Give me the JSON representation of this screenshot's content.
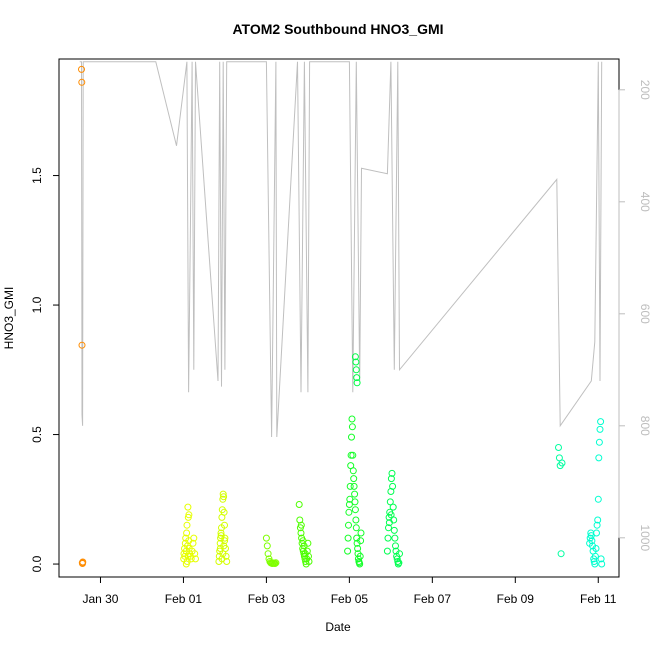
{
  "chart_data": {
    "type": "scatter",
    "title": "ATOM2 Southbound HNO3_GMI",
    "xlabel": "Date",
    "ylabel": "HNO3_GMI",
    "xlim": [
      "2016-01-29T00:00",
      "2016-02-11T12:00"
    ],
    "ylim": [
      -0.05,
      1.95
    ],
    "y2lim": [
      1070,
      145
    ],
    "y2_inverted": true,
    "x_ticks": [
      {
        "date": "2016-01-30",
        "label": "Jan 30"
      },
      {
        "date": "2016-02-01",
        "label": "Feb 01"
      },
      {
        "date": "2016-02-03",
        "label": "Feb 03"
      },
      {
        "date": "2016-02-05",
        "label": "Feb 05"
      },
      {
        "date": "2016-02-07",
        "label": "Feb 07"
      },
      {
        "date": "2016-02-09",
        "label": "Feb 09"
      },
      {
        "date": "2016-02-11",
        "label": "Feb 11"
      }
    ],
    "y_ticks": [
      {
        "value": 0.0,
        "label": "0.0"
      },
      {
        "value": 0.5,
        "label": "0.5"
      },
      {
        "value": 1.0,
        "label": "1.0"
      },
      {
        "value": 1.5,
        "label": "1.5"
      }
    ],
    "y2_ticks": [
      {
        "value": 200,
        "label": "200"
      },
      {
        "value": 400,
        "label": "400"
      },
      {
        "value": 600,
        "label": "600"
      },
      {
        "value": 800,
        "label": "800"
      },
      {
        "value": 1000,
        "label": "1000"
      }
    ],
    "grid": false,
    "legend": "none",
    "colors": {
      "points": [
        "#ff8c00",
        "#e6ff00",
        "#c8ff00",
        "#7fff00",
        "#32ff00",
        "#00ff3c",
        "#00ff6e",
        "#00ffa0",
        "#00ffd0"
      ],
      "pressure_line": "#bfbfbf"
    },
    "series": [
      {
        "color": "#ff8c00",
        "x": [
          "2016-01-29T13:00",
          "2016-01-29T13:12",
          "2016-01-29T13:20",
          "2016-01-29T13:30",
          "2016-01-29T13:36",
          "2016-01-29T13:45"
        ],
        "y": [
          1.91,
          1.86,
          0.845,
          0.005,
          0.002,
          0.008
        ]
      },
      {
        "color": "#e6ff00",
        "x": [
          "2016-02-01T00:10",
          "2016-02-01T00:20",
          "2016-02-01T00:35",
          "2016-02-01T00:50",
          "2016-02-01T01:05",
          "2016-02-01T01:20",
          "2016-02-01T01:35",
          "2016-02-01T01:50",
          "2016-02-01T02:05",
          "2016-02-01T02:20",
          "2016-02-01T02:35",
          "2016-02-01T02:50",
          "2016-02-01T03:05",
          "2016-02-01T03:20",
          "2016-02-01T03:35",
          "2016-02-01T04:00",
          "2016-02-01T04:30",
          "2016-02-01T05:00",
          "2016-02-01T05:30",
          "2016-02-01T06:00",
          "2016-02-01T06:30",
          "2016-02-01T07:00",
          "2016-02-01T01:40",
          "2016-02-01T02:10",
          "2016-02-01T02:40",
          "2016-02-01T03:10"
        ],
        "y": [
          0.02,
          0.04,
          0.06,
          0.03,
          0.08,
          0.1,
          0.05,
          0.12,
          0.15,
          0.07,
          0.22,
          0.18,
          0.09,
          0.06,
          0.04,
          0.03,
          0.02,
          0.05,
          0.08,
          0.1,
          0.04,
          0.02,
          0.0,
          0.01,
          0.03,
          0.19
        ]
      },
      {
        "color": "#d4ff00",
        "x": [
          "2016-02-01T20:30",
          "2016-02-01T20:45",
          "2016-02-01T21:00",
          "2016-02-01T21:15",
          "2016-02-01T21:30",
          "2016-02-01T21:45",
          "2016-02-01T22:00",
          "2016-02-01T22:15",
          "2016-02-01T22:30",
          "2016-02-01T22:45",
          "2016-02-01T23:00",
          "2016-02-01T23:15",
          "2016-02-01T23:30",
          "2016-02-01T23:45",
          "2016-02-02T00:00",
          "2016-02-02T00:20",
          "2016-02-02T00:40",
          "2016-02-02T01:00",
          "2016-02-01T22:20",
          "2016-02-01T22:50",
          "2016-02-01T23:20",
          "2016-02-01T23:50",
          "2016-02-01T21:50",
          "2016-02-01T21:20"
        ],
        "y": [
          0.01,
          0.03,
          0.05,
          0.08,
          0.1,
          0.12,
          0.14,
          0.18,
          0.21,
          0.25,
          0.27,
          0.26,
          0.2,
          0.15,
          0.1,
          0.06,
          0.03,
          0.01,
          0.02,
          0.04,
          0.07,
          0.09,
          0.11,
          0.06
        ]
      },
      {
        "color": "#7fff00",
        "x": [
          "2016-02-03T00:00",
          "2016-02-03T00:30",
          "2016-02-03T01:00",
          "2016-02-03T01:30",
          "2016-02-03T02:00",
          "2016-02-03T02:30",
          "2016-02-03T03:00",
          "2016-02-03T03:30",
          "2016-02-03T04:00",
          "2016-02-03T04:30",
          "2016-02-03T05:00",
          "2016-02-03T05:30"
        ],
        "y": [
          0.1,
          0.07,
          0.04,
          0.02,
          0.01,
          0.005,
          0.003,
          0.002,
          0.004,
          0.003,
          0.002,
          0.005
        ]
      },
      {
        "color": "#4dff00",
        "x": [
          "2016-02-03T19:00",
          "2016-02-03T19:20",
          "2016-02-03T19:40",
          "2016-02-03T20:00",
          "2016-02-03T20:20",
          "2016-02-03T20:40",
          "2016-02-03T21:00",
          "2016-02-03T21:20",
          "2016-02-03T21:40",
          "2016-02-03T22:00",
          "2016-02-03T22:20",
          "2016-02-03T22:40",
          "2016-02-03T23:00",
          "2016-02-03T23:20",
          "2016-02-03T23:40",
          "2016-02-04T00:00",
          "2016-02-04T00:20",
          "2016-02-04T00:40",
          "2016-02-03T21:10",
          "2016-02-03T21:50",
          "2016-02-03T22:30",
          "2016-02-03T20:10"
        ],
        "y": [
          0.23,
          0.17,
          0.14,
          0.12,
          0.1,
          0.08,
          0.06,
          0.05,
          0.04,
          0.03,
          0.02,
          0.01,
          0.0,
          0.02,
          0.05,
          0.08,
          0.03,
          0.01,
          0.09,
          0.07,
          0.04,
          0.15
        ]
      },
      {
        "color": "#14ff28",
        "x": [
          "2016-02-04T23:00",
          "2016-02-04T23:15",
          "2016-02-04T23:30",
          "2016-02-04T23:45",
          "2016-02-05T00:00",
          "2016-02-05T00:15",
          "2016-02-05T00:30",
          "2016-02-05T00:45",
          "2016-02-05T01:00",
          "2016-02-05T01:15",
          "2016-02-05T01:30",
          "2016-02-05T01:45",
          "2016-02-05T02:00",
          "2016-02-05T02:15",
          "2016-02-05T02:30",
          "2016-02-05T02:45",
          "2016-02-05T03:00",
          "2016-02-05T03:15",
          "2016-02-05T03:30",
          "2016-02-05T03:45",
          "2016-02-05T04:00",
          "2016-02-05T04:15",
          "2016-02-05T04:30",
          "2016-02-05T04:45",
          "2016-02-05T05:00",
          "2016-02-05T05:15",
          "2016-02-05T05:30",
          "2016-02-05T05:45",
          "2016-02-05T06:00",
          "2016-02-05T06:15",
          "2016-02-05T06:30",
          "2016-02-05T06:45"
        ],
        "y": [
          0.05,
          0.1,
          0.15,
          0.2,
          0.23,
          0.25,
          0.3,
          0.38,
          0.42,
          0.49,
          0.56,
          0.53,
          0.42,
          0.36,
          0.33,
          0.3,
          0.27,
          0.24,
          0.21,
          0.17,
          0.14,
          0.1,
          0.08,
          0.06,
          0.04,
          0.02,
          0.01,
          0.005,
          0.0,
          0.03,
          0.09,
          0.12
        ]
      },
      {
        "color": "#00ff46",
        "x": [
          "2016-02-05T03:30",
          "2016-02-05T03:45",
          "2016-02-05T04:00",
          "2016-02-05T04:15",
          "2016-02-05T04:30"
        ],
        "y": [
          0.8,
          0.78,
          0.75,
          0.72,
          0.7
        ]
      },
      {
        "color": "#00ff50",
        "x": [
          "2016-02-05T22:00",
          "2016-02-05T22:20",
          "2016-02-05T22:40",
          "2016-02-05T23:00",
          "2016-02-05T23:20",
          "2016-02-05T23:40",
          "2016-02-06T00:00",
          "2016-02-06T00:20",
          "2016-02-06T00:40",
          "2016-02-06T01:00",
          "2016-02-06T01:20",
          "2016-02-06T01:40",
          "2016-02-06T02:00",
          "2016-02-06T02:20",
          "2016-02-06T02:40",
          "2016-02-06T03:00",
          "2016-02-06T03:20",
          "2016-02-06T03:40",
          "2016-02-06T04:00",
          "2016-02-06T04:20",
          "2016-02-06T04:40",
          "2016-02-06T05:00",
          "2016-02-05T23:10",
          "2016-02-06T00:10"
        ],
        "y": [
          0.05,
          0.1,
          0.14,
          0.18,
          0.2,
          0.24,
          0.28,
          0.33,
          0.35,
          0.3,
          0.22,
          0.17,
          0.13,
          0.1,
          0.07,
          0.05,
          0.03,
          0.02,
          0.01,
          0.0,
          0.005,
          0.04,
          0.16,
          0.19
        ]
      },
      {
        "color": "#00ffa0",
        "x": [
          "2016-02-10T01:00",
          "2016-02-10T01:30",
          "2016-02-10T02:00",
          "2016-02-10T02:30",
          "2016-02-10T03:00"
        ],
        "y": [
          0.45,
          0.41,
          0.38,
          0.04,
          0.39
        ]
      },
      {
        "color": "#00ffd0",
        "x": [
          "2016-02-10T19:00",
          "2016-02-10T19:20",
          "2016-02-10T19:40",
          "2016-02-10T20:00",
          "2016-02-10T20:20",
          "2016-02-10T20:40",
          "2016-02-10T21:00",
          "2016-02-10T21:20",
          "2016-02-10T21:40",
          "2016-02-10T22:00",
          "2016-02-10T22:20",
          "2016-02-10T22:40",
          "2016-02-10T23:00",
          "2016-02-10T23:20",
          "2016-02-10T23:40",
          "2016-02-11T00:00",
          "2016-02-11T00:20",
          "2016-02-11T00:40",
          "2016-02-11T01:00",
          "2016-02-11T01:20",
          "2016-02-11T01:40",
          "2016-02-11T02:00"
        ],
        "y": [
          0.08,
          0.1,
          0.12,
          0.11,
          0.09,
          0.07,
          0.05,
          0.02,
          0.01,
          0.0,
          0.03,
          0.06,
          0.12,
          0.15,
          0.17,
          0.25,
          0.41,
          0.47,
          0.52,
          0.55,
          0.02,
          0.0
        ]
      }
    ],
    "pressure_profile": {
      "name": "",
      "color": "#bfbfbf",
      "x": [
        "2016-01-29T12:00",
        "2016-01-29T13:00",
        "2016-01-29T13:20",
        "2016-01-29T13:40",
        "2016-01-29T14:00",
        "2016-01-30T10:00",
        "2016-01-31T08:00",
        "2016-01-31T20:00",
        "2016-02-01T02:00",
        "2016-02-01T03:00",
        "2016-02-01T04:00",
        "2016-02-01T05:00",
        "2016-02-01T06:00",
        "2016-02-01T07:00",
        "2016-02-01T20:00",
        "2016-02-01T21:00",
        "2016-02-01T22:00",
        "2016-02-01T23:00",
        "2016-02-02T00:00",
        "2016-02-02T01:00",
        "2016-02-02T18:00",
        "2016-02-03T00:00",
        "2016-02-03T03:00",
        "2016-02-03T05:30",
        "2016-02-03T06:00",
        "2016-02-03T18:00",
        "2016-02-03T20:00",
        "2016-02-03T22:00",
        "2016-02-04T00:00",
        "2016-02-04T01:00",
        "2016-02-04T22:00",
        "2016-02-05T00:00",
        "2016-02-05T02:00",
        "2016-02-05T04:00",
        "2016-02-05T06:00",
        "2016-02-05T07:00",
        "2016-02-05T22:00",
        "2016-02-06T00:00",
        "2016-02-06T02:00",
        "2016-02-06T04:00",
        "2016-02-06T05:00",
        "2016-02-10T00:00",
        "2016-02-10T02:00",
        "2016-02-10T20:00",
        "2016-02-10T22:00",
        "2016-02-11T00:00",
        "2016-02-11T01:00",
        "2016-02-11T02:00"
      ],
      "p": [
        150,
        150,
        780,
        800,
        150,
        150,
        150,
        300,
        150,
        740,
        450,
        150,
        700,
        150,
        720,
        150,
        730,
        150,
        700,
        150,
        150,
        150,
        820,
        150,
        820,
        150,
        740,
        150,
        740,
        150,
        150,
        150,
        740,
        150,
        720,
        340,
        350,
        150,
        700,
        150,
        700,
        360,
        800,
        720,
        650,
        150,
        720,
        150
      ]
    }
  }
}
